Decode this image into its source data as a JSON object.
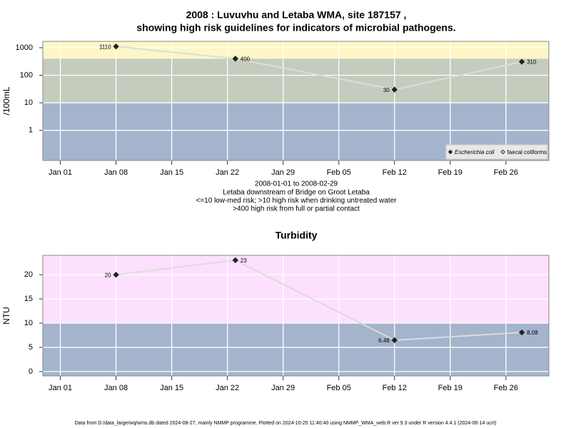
{
  "chart_data": [
    {
      "type": "line",
      "title": [
        "2008 : Luvuvhu and Letaba WMA, site 187157 ,",
        "showing high risk guidelines for indicators of microbial pathogens."
      ],
      "notes": [
        "2008-01-01 to 2008-02-29",
        "Letaba downstream of Bridge on Groot Letaba",
        "<=10 low-med risk; >10 high risk when drinking untreated water",
        ">400 high risk from full or partial contact"
      ],
      "y_label": "/100mL",
      "yscale": "log",
      "x": [
        7,
        22,
        42,
        58
      ],
      "series": [
        {
          "name": "Escherichia coli",
          "color": "#222222",
          "marker": "filled",
          "values": [
            1110,
            400,
            30,
            310
          ]
        },
        {
          "name": "faecal coliforms",
          "color": "#222222",
          "marker": "open",
          "values": [
            null,
            null,
            null,
            null
          ]
        }
      ],
      "line_color": "#dcdcdc",
      "xlim": [
        -2.2,
        61.4
      ],
      "xticks": [
        {
          "value": 0,
          "label": "Jan 01"
        },
        {
          "value": 7,
          "label": "Jan 08"
        },
        {
          "value": 14,
          "label": "Jan 15"
        },
        {
          "value": 21,
          "label": "Jan 22"
        },
        {
          "value": 28,
          "label": "Jan 29"
        },
        {
          "value": 35,
          "label": "Feb 05"
        },
        {
          "value": 42,
          "label": "Feb 12"
        },
        {
          "value": 49,
          "label": "Feb 19"
        },
        {
          "value": 56,
          "label": "Feb 26"
        }
      ],
      "ylim": [
        0.08,
        1700
      ],
      "yticks": [
        1,
        10,
        100,
        1000
      ],
      "bands": [
        {
          "min": 0.08,
          "max": 10,
          "color": "#a4b4cc"
        },
        {
          "min": 10,
          "max": 400,
          "color": "#c4ccbe"
        },
        {
          "min": 400,
          "max": 1700,
          "color": "#fdf6c6"
        }
      ],
      "grid": true,
      "legend": "bottom-right"
    },
    {
      "type": "line",
      "title": [
        "Turbidity"
      ],
      "y_label": "NTU",
      "yscale": "linear",
      "x": [
        7,
        22,
        42,
        58
      ],
      "values": [
        20,
        23,
        6.48,
        8.08
      ],
      "color": "#222222",
      "marker": "filled",
      "line_color": "#dcdcdc",
      "xlim": [
        -2.2,
        61.4
      ],
      "xticks": [
        {
          "value": 0,
          "label": "Jan 01"
        },
        {
          "value": 7,
          "label": "Jan 08"
        },
        {
          "value": 14,
          "label": "Jan 15"
        },
        {
          "value": 21,
          "label": "Jan 22"
        },
        {
          "value": 28,
          "label": "Jan 29"
        },
        {
          "value": 35,
          "label": "Feb 05"
        },
        {
          "value": 42,
          "label": "Feb 12"
        },
        {
          "value": 49,
          "label": "Feb 19"
        },
        {
          "value": 56,
          "label": "Feb 26"
        }
      ],
      "ylim": [
        -0.9,
        24
      ],
      "yticks": [
        0,
        5,
        10,
        15,
        20
      ],
      "bands": [
        {
          "min": -0.9,
          "max": 10,
          "color": "#a4b4cc"
        },
        {
          "min": 10,
          "max": 24,
          "color": "#fde0fd"
        }
      ],
      "grid": true
    }
  ],
  "footer": "Data from D:/data_large/wq/wms.db dated 2024-08-27, mainly NMMP programme. Plotted on 2024-10-25 11:40:40 using NMMP_WMA_web.R ver 9.3 under R version 4.4.1 (2024-06-14 ucrt)"
}
